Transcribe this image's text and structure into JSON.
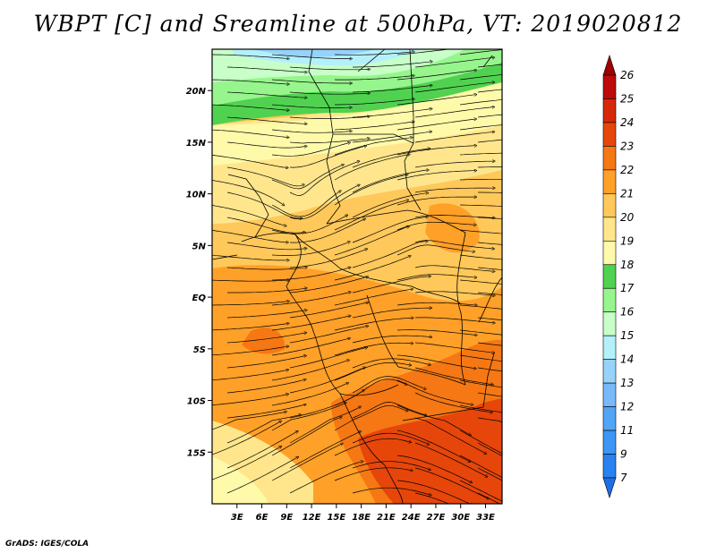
{
  "title": "WBPT [C] and Sreamline at 500hPa, VT: 2019020812",
  "footer": "GrADS: IGES/COLA",
  "map": {
    "lon_range": [
      0,
      35
    ],
    "lat_range": [
      -20,
      24
    ],
    "lon_ticks": [
      "3E",
      "6E",
      "9E",
      "12E",
      "15E",
      "18E",
      "21E",
      "24E",
      "27E",
      "30E",
      "33E"
    ],
    "lat_ticks": [
      "20N",
      "15N",
      "10N",
      "5N",
      "EQ",
      "5S",
      "10S",
      "15S"
    ]
  },
  "colorbar": {
    "labels": [
      "7",
      "9",
      "11",
      "12",
      "13",
      "14",
      "15",
      "16",
      "17",
      "18",
      "19",
      "20",
      "21",
      "22",
      "23",
      "24",
      "25",
      "26"
    ],
    "colors": [
      "#1e6ee6",
      "#2882f0",
      "#3c96f5",
      "#50a5f5",
      "#78b9fa",
      "#96d2fa",
      "#b4f0fa",
      "#c8ffc8",
      "#96f58c",
      "#50d250",
      "#fffaaa",
      "#ffe68c",
      "#ffc85a",
      "#ffa028",
      "#f57814",
      "#e6460a",
      "#d7280a",
      "#be0a0a",
      "#a00000"
    ]
  }
}
